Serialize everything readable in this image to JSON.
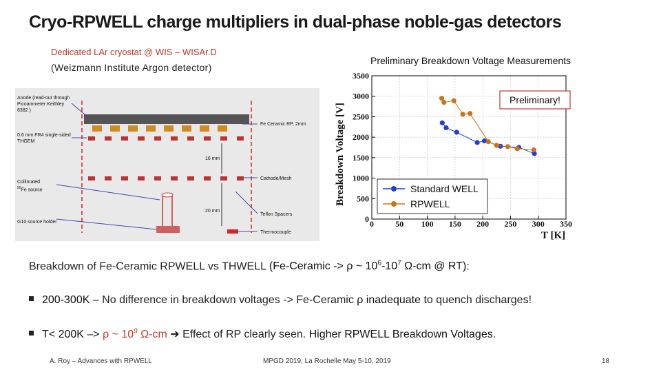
{
  "slide": {
    "title": "Cryo-RPWELL charge multipliers in dual-phase noble-gas detectors",
    "subtitle_line1": "Dedicated LAr cryostat @ WIS – WISAr.D",
    "subtitle_line2": "(Weizmann Institute Argon detector)",
    "chart_heading": "Preliminary Breakdown Voltage Measurements"
  },
  "schematic": {
    "labels": {
      "anode": "Anode (read-out through Picoammeter Keithley 6382 )",
      "thgem": "0.6 mm FR4 single-sided THGEM",
      "collimated": "Collimated",
      "fe_source": "Fe source",
      "fe_sup": "55",
      "g10": "G10 source holder",
      "fe_ceramic": "Fe Ceramic RP, 2mm",
      "cathode": "Cathode/Mesh",
      "teflon": "Teflon Spacers",
      "thermocouple": "Thermocouple",
      "dim16": "16 mm",
      "dim20": "20 mm"
    }
  },
  "chart_data": {
    "type": "scatter",
    "xlabel": "T [K]",
    "ylabel": "Breakdown Voltage [V]",
    "xlim": [
      0,
      350
    ],
    "ylim": [
      0,
      3500
    ],
    "x_ticks": [
      "0",
      "50",
      "100",
      "150",
      "200",
      "250",
      "300",
      "350"
    ],
    "y_ticks": [
      "0",
      "500",
      "1000",
      "1500",
      "2000",
      "2500",
      "3000",
      "3500"
    ],
    "legend_position": "bottom-left",
    "annotation": "Preliminary!",
    "series": [
      {
        "name": "Standard WELL",
        "color": "#1f3fd8",
        "points": [
          [
            127,
            2350
          ],
          [
            134,
            2230
          ],
          [
            153,
            2120
          ],
          [
            190,
            1870
          ],
          [
            203,
            1910
          ],
          [
            232,
            1780
          ],
          [
            265,
            1750
          ],
          [
            293,
            1600
          ]
        ]
      },
      {
        "name": "RPWELL",
        "color": "#c8741a",
        "points": [
          [
            126,
            2950
          ],
          [
            130,
            2850
          ],
          [
            148,
            2890
          ],
          [
            164,
            2560
          ],
          [
            177,
            2580
          ],
          [
            210,
            1890
          ],
          [
            225,
            1800
          ],
          [
            245,
            1770
          ],
          [
            262,
            1720
          ],
          [
            292,
            1690
          ]
        ]
      }
    ]
  },
  "text": {
    "body": "Breakdown of Fe-Ceramic RPWELL vs THWELL",
    "body_paren": "(Fe-Ceramic -> ρ ~ 10",
    "body_exp1": "6",
    "body_mid": "-10",
    "body_exp2": "7",
    "body_end": " Ω-cm @ RT)",
    "body_colon": ":",
    "b1_bold": "200-300K",
    "b1_text": " – No difference in breakdown voltages -> Fe-Ceramic ",
    "b1_rho": "ρ inadequate",
    "b1_tail": " to quench discharges!",
    "b2_head": "T< 200K –> ",
    "b2_rho": "ρ ~ 10",
    "b2_exp": "9",
    "b2_unit": " Ω-cm",
    "b2_arrow": " ➔ ",
    "b2_text": "Effect of RP clearly seen. ",
    "b2_bold": "Higher RPWELL Breakdown Voltages",
    "b2_end": "."
  },
  "footer": {
    "left": "A. Roy – Advances with RPWELL",
    "middle": "MPGD 2019, La Rochelle May 5-10, 2019",
    "page": "18"
  }
}
